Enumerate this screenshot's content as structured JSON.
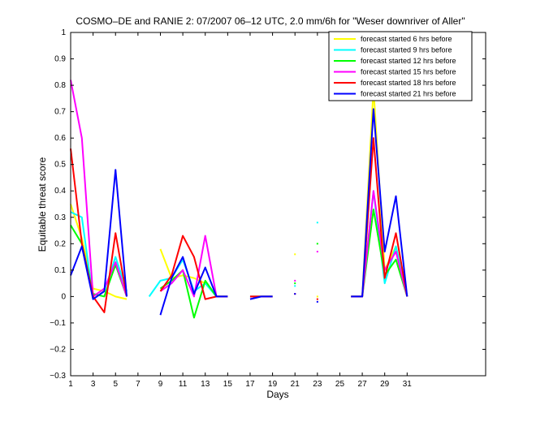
{
  "chart_data": {
    "type": "line",
    "title": "COSMO–DE and RANIE 2: 07/2007 06–12 UTC, 2.0 mm/6h for \"Weser downriver of Aller\"",
    "xlabel": "Days",
    "ylabel": "Equitable threat score",
    "xlim": [
      1,
      38
    ],
    "ylim": [
      -0.3,
      1
    ],
    "xticks": [
      1,
      3,
      5,
      7,
      9,
      11,
      13,
      15,
      17,
      19,
      21,
      23,
      25,
      27,
      29,
      31
    ],
    "yticks": [
      -0.3,
      -0.2,
      -0.1,
      0,
      0.1,
      0.2,
      0.3,
      0.4,
      0.5,
      0.6,
      0.7,
      0.8,
      0.9,
      1
    ],
    "ytick_labels": [
      "−0.3",
      "−0.2",
      "−0.1",
      "0",
      "0.1",
      "0.2",
      "0.3",
      "0.4",
      "0.5",
      "0.6",
      "0.7",
      "0.8",
      "0.9",
      "1"
    ],
    "legend_position": "top-right",
    "grid": false,
    "series": [
      {
        "name": "forecast started 6 hrs before",
        "color": "#ffff00",
        "values": [
          0.35,
          0.22,
          0.03,
          0.02,
          0.0,
          -0.01,
          null,
          null,
          0.18,
          0.07,
          0.08,
          0.07,
          0.05,
          0.0,
          0.0,
          null,
          0.0,
          0.0,
          0.0,
          null,
          0.16,
          null,
          0.0,
          null,
          null,
          0.0,
          0.0,
          0.79,
          0.1,
          0.19,
          0.0
        ]
      },
      {
        "name": "forecast started 9 hrs before",
        "color": "#00ffff",
        "values": [
          0.32,
          0.3,
          -0.01,
          0.02,
          0.15,
          0.02,
          null,
          0.0,
          0.06,
          0.07,
          0.14,
          0.02,
          0.05,
          0.0,
          0.0,
          null,
          0.0,
          0.0,
          0.0,
          null,
          0.04,
          null,
          0.28,
          null,
          null,
          0.0,
          0.0,
          0.4,
          0.05,
          0.19,
          0.0
        ]
      },
      {
        "name": "forecast started 12 hrs before",
        "color": "#00ff00",
        "values": [
          0.27,
          0.2,
          0.01,
          0.0,
          0.12,
          0.0,
          null,
          null,
          0.03,
          0.06,
          0.1,
          -0.08,
          0.06,
          0.0,
          0.0,
          null,
          0.0,
          0.0,
          0.0,
          null,
          0.05,
          null,
          0.2,
          null,
          null,
          0.0,
          0.0,
          0.33,
          0.08,
          0.14,
          0.0
        ]
      },
      {
        "name": "forecast started 15 hrs before",
        "color": "#ff00ff",
        "values": [
          0.82,
          0.6,
          0.0,
          0.03,
          0.13,
          0.0,
          null,
          null,
          0.02,
          0.05,
          0.1,
          0.0,
          0.23,
          0.0,
          0.0,
          null,
          0.0,
          0.0,
          0.0,
          null,
          0.06,
          null,
          0.17,
          null,
          null,
          0.0,
          0.0,
          0.4,
          0.1,
          0.17,
          0.0
        ]
      },
      {
        "name": "forecast started 18 hrs before",
        "color": "#ff0000",
        "values": [
          0.56,
          0.2,
          0.0,
          -0.06,
          0.24,
          0.0,
          null,
          null,
          0.02,
          0.08,
          0.23,
          0.15,
          -0.01,
          0.0,
          0.0,
          null,
          0.0,
          0.0,
          0.0,
          null,
          0.01,
          null,
          -0.01,
          null,
          null,
          0.0,
          0.0,
          0.6,
          0.07,
          0.24,
          0.0
        ]
      },
      {
        "name": "forecast started 21 hrs before",
        "color": "#0000ff",
        "values": [
          0.08,
          0.19,
          -0.01,
          0.02,
          0.48,
          0.0,
          null,
          null,
          -0.07,
          0.07,
          0.15,
          0.01,
          0.11,
          0.0,
          0.0,
          null,
          -0.01,
          0.0,
          0.0,
          null,
          0.01,
          null,
          -0.02,
          null,
          null,
          0.0,
          0.0,
          0.71,
          0.17,
          0.38,
          0.0
        ]
      }
    ]
  }
}
